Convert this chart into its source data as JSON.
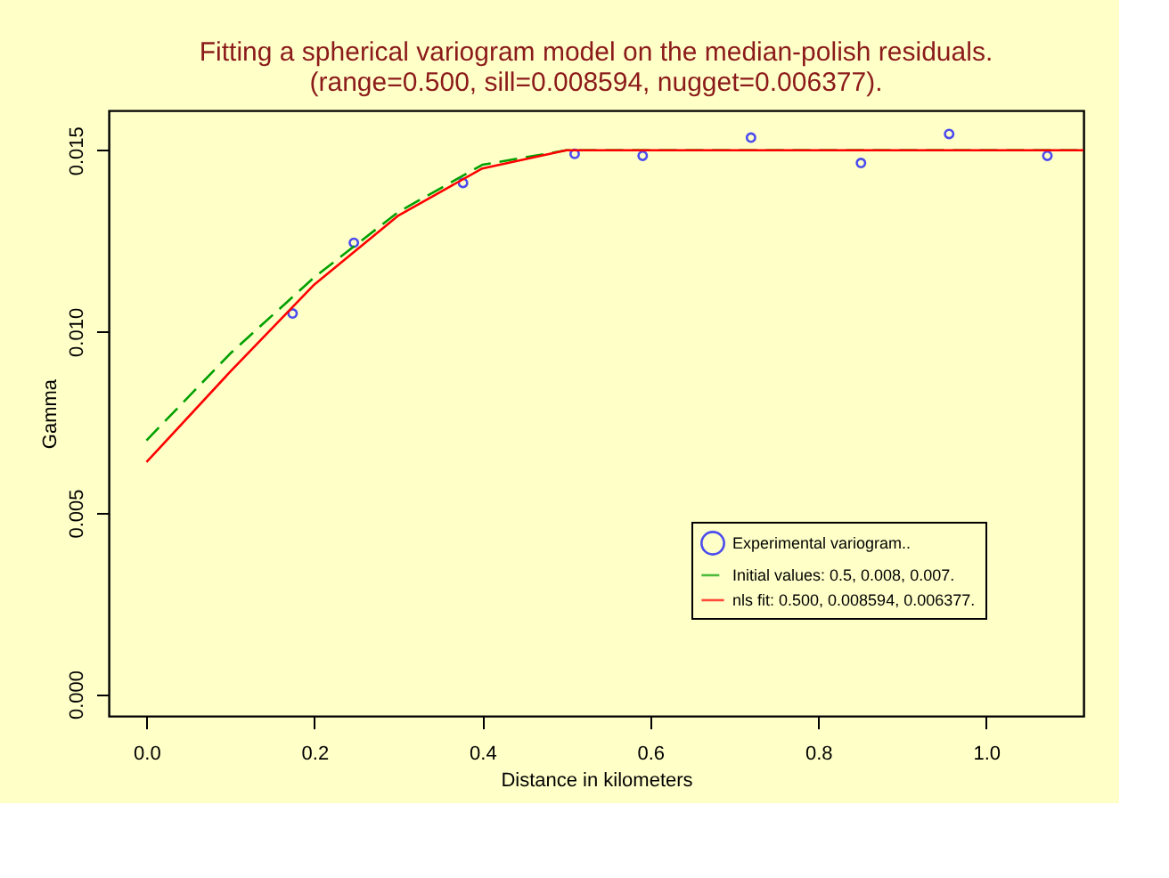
{
  "chart_data": {
    "type": "scatter",
    "title": [
      "Fitting a spherical variogram model on the median-polish residuals.",
      "(range=0.500, sill=0.008594, nugget=0.006377)."
    ],
    "xlabel": "Distance in kilometers",
    "ylabel": "Gamma",
    "series": [
      {
        "name": "Experimental variogram..",
        "color": "#0000ff",
        "marker": "circle",
        "x": [
          0.174,
          0.247,
          0.377,
          0.51,
          0.591,
          0.72,
          0.851,
          0.956,
          1.073
        ],
        "values": [
          0.0105,
          0.01245,
          0.0141,
          0.0149,
          0.01485,
          0.01535,
          0.01465,
          0.01545,
          0.01485
        ]
      },
      {
        "name": "Initial values: 0.5, 0.008, 0.007.",
        "type": "line",
        "color": "#00a000",
        "line_style": "dashed",
        "marker": "none",
        "x": [
          0,
          0.1,
          0.2,
          0.3,
          0.4,
          0.5,
          1.116
        ],
        "values": [
          0.007,
          0.0094,
          0.0115,
          0.0133,
          0.0146,
          0.015,
          0.015
        ]
      },
      {
        "name": "nls fit: 0.500, 0.008594, 0.006377.",
        "type": "line",
        "color": "#ff0000",
        "line_style": "solid",
        "marker": "none",
        "x": [
          0,
          0.1,
          0.2,
          0.3,
          0.4,
          0.5,
          1.116
        ],
        "values": [
          0.0064,
          0.0089,
          0.0113,
          0.0132,
          0.0145,
          0.015,
          0.015
        ]
      }
    ],
    "xlim": [
      -0.045,
      1.116
    ],
    "ylim": [
      -0.0006,
      0.0161
    ],
    "xticks": [
      {
        "value": 0,
        "label": "0.0"
      },
      {
        "value": 0.2,
        "label": "0.2"
      },
      {
        "value": 0.4,
        "label": "0.4"
      },
      {
        "value": 0.6,
        "label": "0.6"
      },
      {
        "value": 0.8,
        "label": "0.8"
      },
      {
        "value": 1.0,
        "label": "1.0"
      }
    ],
    "yticks": [
      {
        "value": 0,
        "label": "0.000"
      },
      {
        "value": 0.005,
        "label": "0.005"
      },
      {
        "value": 0.01,
        "label": "0.010"
      },
      {
        "value": 0.015,
        "label": "0.015"
      }
    ],
    "grid": false,
    "legend": "bottom right"
  }
}
